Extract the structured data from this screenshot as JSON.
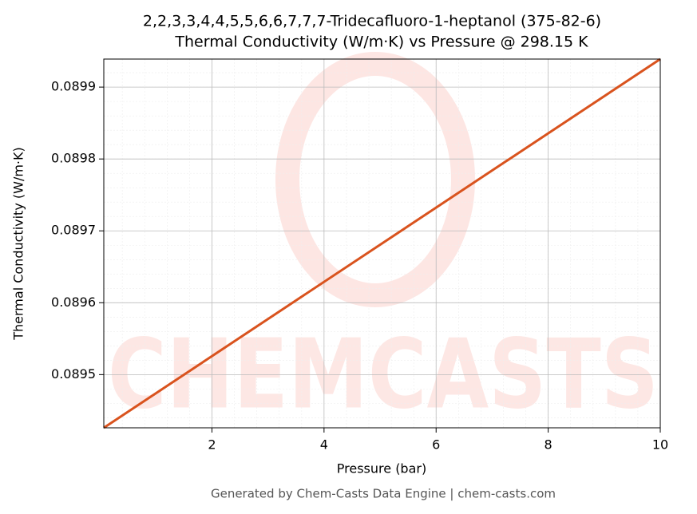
{
  "chart_data": {
    "type": "line",
    "title": "2,2,3,3,4,4,5,5,6,6,7,7,7-Tridecafluoro-1-heptanol (375-82-6)",
    "subtitle": "Thermal Conductivity (W/m·K) vs Pressure @ 298.15 K",
    "x_label": "Pressure (bar)",
    "y_label": "Thermal Conductivity (W/m·K)",
    "watermark": "CHEMCASTS",
    "footer": "Generated by Chem-Casts Data Engine | chem-casts.com",
    "x": [
      0.07,
      10
    ],
    "series": [
      {
        "name": "Thermal Conductivity",
        "color": "#d9531e",
        "values": [
          0.089426,
          0.089939
        ]
      }
    ],
    "xlim": [
      0.07,
      10
    ],
    "xticks": [
      2,
      4,
      6,
      8,
      10
    ],
    "ylim": [
      0.089426,
      0.089939
    ],
    "yticks": [
      0.0895,
      0.0896,
      0.0897,
      0.0898,
      0.0899
    ],
    "grid": true
  }
}
